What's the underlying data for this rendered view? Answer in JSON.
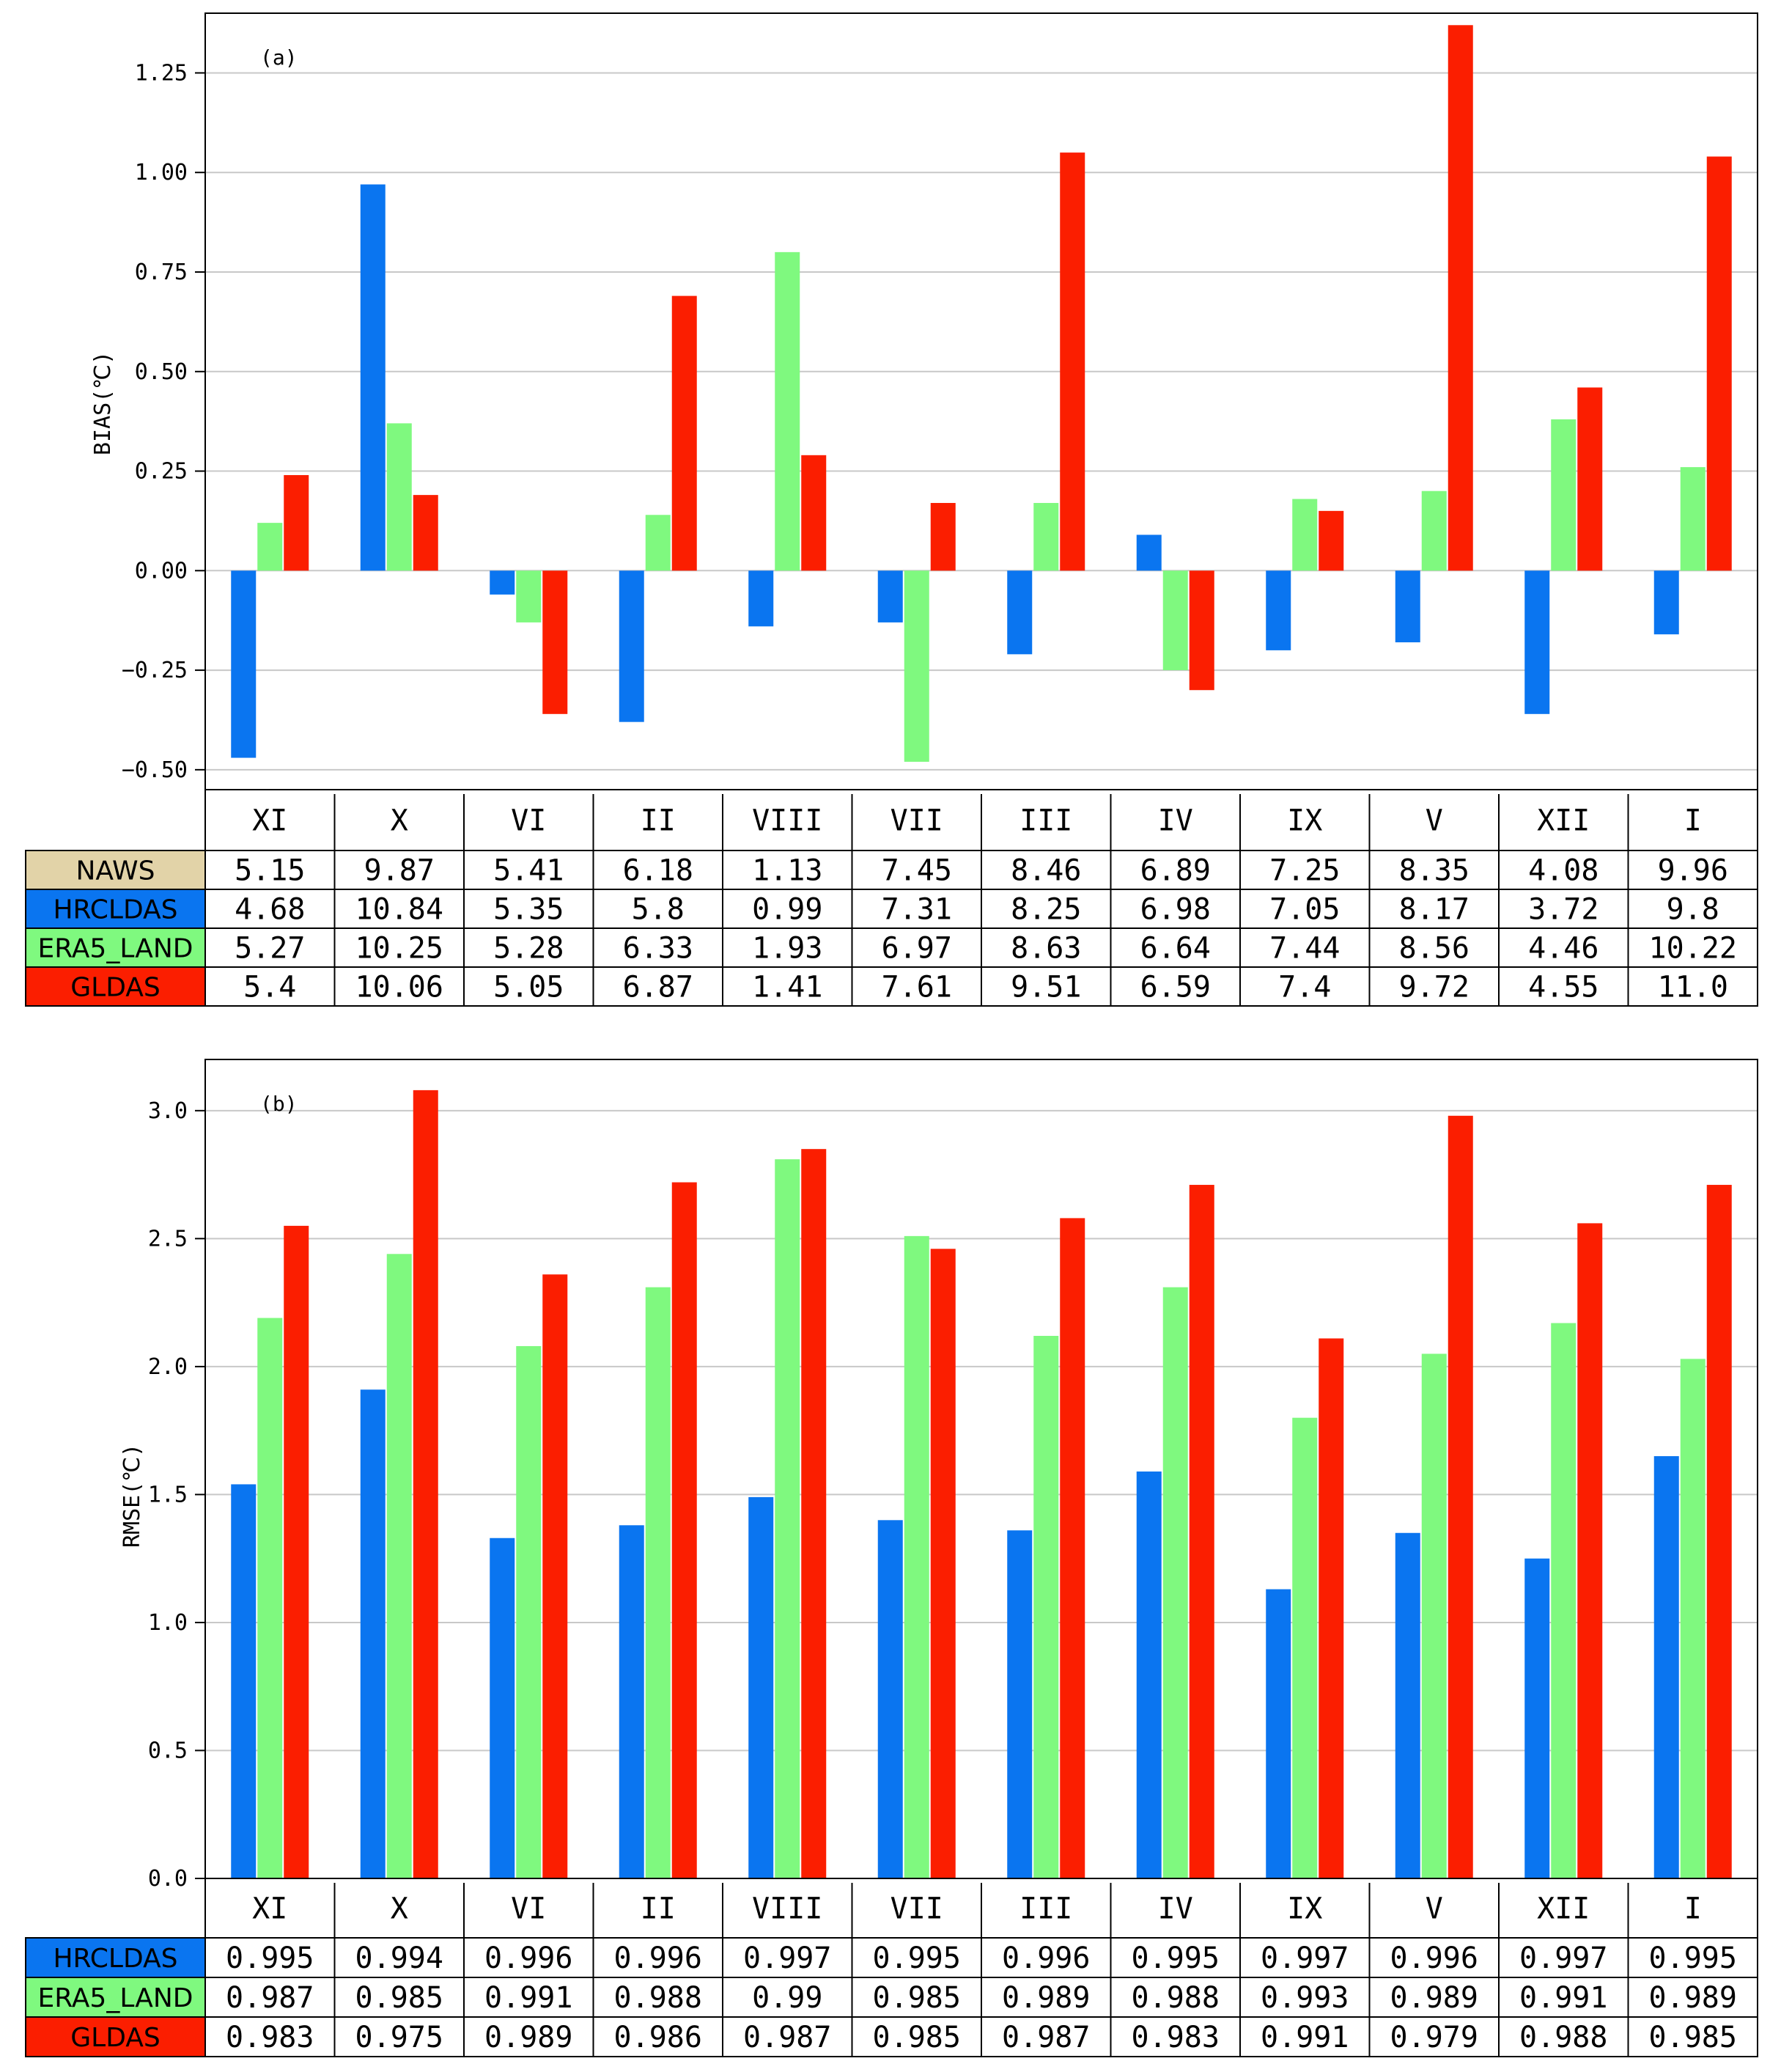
{
  "colors": {
    "HRCLDAS": "#0a75f0",
    "ERA5_LAND": "#7ff97f",
    "GLDAS": "#fb1e00",
    "NAWS": "#e2d3a8"
  },
  "categories": [
    "XI",
    "X",
    "VI",
    "II",
    "VIII",
    "VII",
    "III",
    "IV",
    "IX",
    "V",
    "XII",
    "I"
  ],
  "chart_data": [
    {
      "type": "bar",
      "panel_label": "(a)",
      "title": "",
      "xlabel": "",
      "ylabel": "BIAS(℃)",
      "ylim": [
        -0.55,
        1.4
      ],
      "yticks": [
        -0.5,
        -0.25,
        0.0,
        0.25,
        0.5,
        0.75,
        1.0,
        1.25
      ],
      "ytick_labels": [
        "−0.50",
        "−0.25",
        "0.00",
        "0.25",
        "0.50",
        "0.75",
        "1.00",
        "1.25"
      ],
      "grid": true,
      "categories": [
        "XI",
        "X",
        "VI",
        "II",
        "VIII",
        "VII",
        "III",
        "IV",
        "IX",
        "V",
        "XII",
        "I"
      ],
      "series": [
        {
          "name": "HRCLDAS",
          "values": [
            -0.47,
            0.97,
            -0.06,
            -0.38,
            -0.14,
            -0.13,
            -0.21,
            0.09,
            -0.2,
            -0.18,
            -0.36,
            -0.16
          ]
        },
        {
          "name": "ERA5_LAND",
          "values": [
            0.12,
            0.37,
            -0.13,
            0.14,
            0.8,
            -0.48,
            0.17,
            -0.25,
            0.18,
            0.2,
            0.38,
            0.26
          ]
        },
        {
          "name": "GLDAS",
          "values": [
            0.24,
            0.19,
            -0.36,
            0.69,
            0.29,
            0.17,
            1.05,
            -0.3,
            0.15,
            1.37,
            0.46,
            1.04
          ]
        }
      ],
      "table": {
        "rows": [
          {
            "name": "NAWS",
            "values": [
              "5.15",
              "9.87",
              "5.41",
              "6.18",
              "1.13",
              "7.45",
              "8.46",
              "6.89",
              "7.25",
              "8.35",
              "4.08",
              "9.96"
            ]
          },
          {
            "name": "HRCLDAS",
            "values": [
              "4.68",
              "10.84",
              "5.35",
              "5.8",
              "0.99",
              "7.31",
              "8.25",
              "6.98",
              "7.05",
              "8.17",
              "3.72",
              "9.8"
            ]
          },
          {
            "name": "ERA5_LAND",
            "values": [
              "5.27",
              "10.25",
              "5.28",
              "6.33",
              "1.93",
              "6.97",
              "8.63",
              "6.64",
              "7.44",
              "8.56",
              "4.46",
              "10.22"
            ]
          },
          {
            "name": "GLDAS",
            "values": [
              "5.4",
              "10.06",
              "5.05",
              "6.87",
              "1.41",
              "7.61",
              "9.51",
              "6.59",
              "7.4",
              "9.72",
              "4.55",
              "11.0"
            ]
          }
        ]
      }
    },
    {
      "type": "bar",
      "panel_label": "(b)",
      "title": "",
      "xlabel": "",
      "ylabel": "RMSE(℃)",
      "ylim": [
        0,
        3.2
      ],
      "yticks": [
        0,
        0.5,
        1.0,
        1.5,
        2.0,
        2.5,
        3.0
      ],
      "ytick_labels": [
        "0.0",
        "0.5",
        "1.0",
        "1.5",
        "2.0",
        "2.5",
        "3.0"
      ],
      "grid": true,
      "categories": [
        "XI",
        "X",
        "VI",
        "II",
        "VIII",
        "VII",
        "III",
        "IV",
        "IX",
        "V",
        "XII",
        "I"
      ],
      "series": [
        {
          "name": "HRCLDAS",
          "values": [
            1.54,
            1.91,
            1.33,
            1.38,
            1.49,
            1.4,
            1.36,
            1.59,
            1.13,
            1.35,
            1.25,
            1.65
          ]
        },
        {
          "name": "ERA5_LAND",
          "values": [
            2.19,
            2.44,
            2.08,
            2.31,
            2.81,
            2.51,
            2.12,
            2.31,
            1.8,
            2.05,
            2.17,
            2.03
          ]
        },
        {
          "name": "GLDAS",
          "values": [
            2.55,
            3.08,
            2.36,
            2.72,
            2.85,
            2.46,
            2.58,
            2.71,
            2.11,
            2.98,
            2.56,
            2.71
          ]
        }
      ],
      "table": {
        "rows": [
          {
            "name": "HRCLDAS",
            "values": [
              "0.995",
              "0.994",
              "0.996",
              "0.996",
              "0.997",
              "0.995",
              "0.996",
              "0.995",
              "0.997",
              "0.996",
              "0.997",
              "0.995"
            ]
          },
          {
            "name": "ERA5_LAND",
            "values": [
              "0.987",
              "0.985",
              "0.991",
              "0.988",
              "0.99",
              "0.985",
              "0.989",
              "0.988",
              "0.993",
              "0.989",
              "0.991",
              "0.989"
            ]
          },
          {
            "name": "GLDAS",
            "values": [
              "0.983",
              "0.975",
              "0.989",
              "0.986",
              "0.987",
              "0.985",
              "0.987",
              "0.983",
              "0.991",
              "0.979",
              "0.988",
              "0.985"
            ]
          }
        ]
      }
    }
  ]
}
